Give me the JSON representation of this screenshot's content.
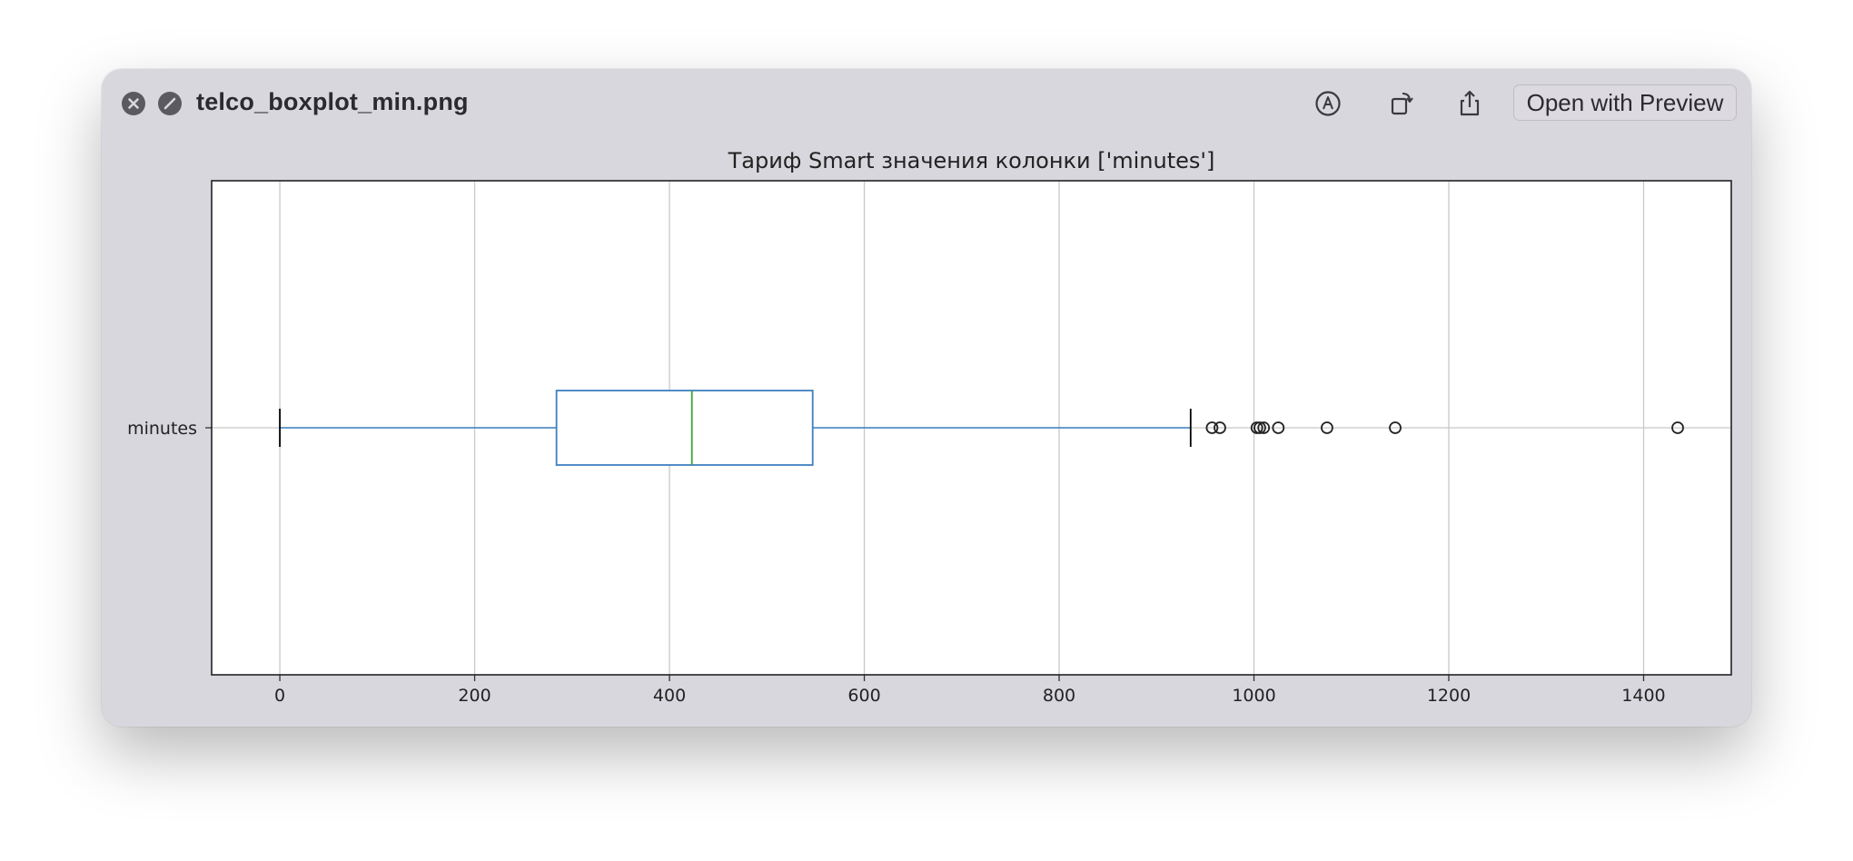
{
  "window": {
    "title": "telco_boxplot_min.png",
    "open_with_label": "Open with Preview"
  },
  "toolbar": {
    "close_icon": "close-icon",
    "fullscreen_icon": "fullscreen-icon",
    "markup_icon": "markup-icon",
    "rotate_icon": "rotate-icon",
    "share_icon": "share-icon",
    "live_text_icon": "live-text-icon"
  },
  "chart_data": {
    "type": "boxplot",
    "orientation": "horizontal",
    "title": "Тариф Smart значения колонки ['minutes']",
    "category": "minutes",
    "xlim": [
      -70,
      1490
    ],
    "xticks": [
      0,
      200,
      400,
      600,
      800,
      1000,
      1200,
      1400
    ],
    "grid": true,
    "box": {
      "whisker_low": 0,
      "q1": 284,
      "median": 423,
      "q3": 547,
      "whisker_high": 935
    },
    "outliers": [
      957,
      965,
      1003,
      1006,
      1010,
      1025,
      1075,
      1145,
      1435
    ],
    "colors": {
      "box": "#3e7fbf",
      "median": "#3aa53a",
      "grid": "#c8c8c8",
      "whisker_cap": "#000000"
    }
  }
}
